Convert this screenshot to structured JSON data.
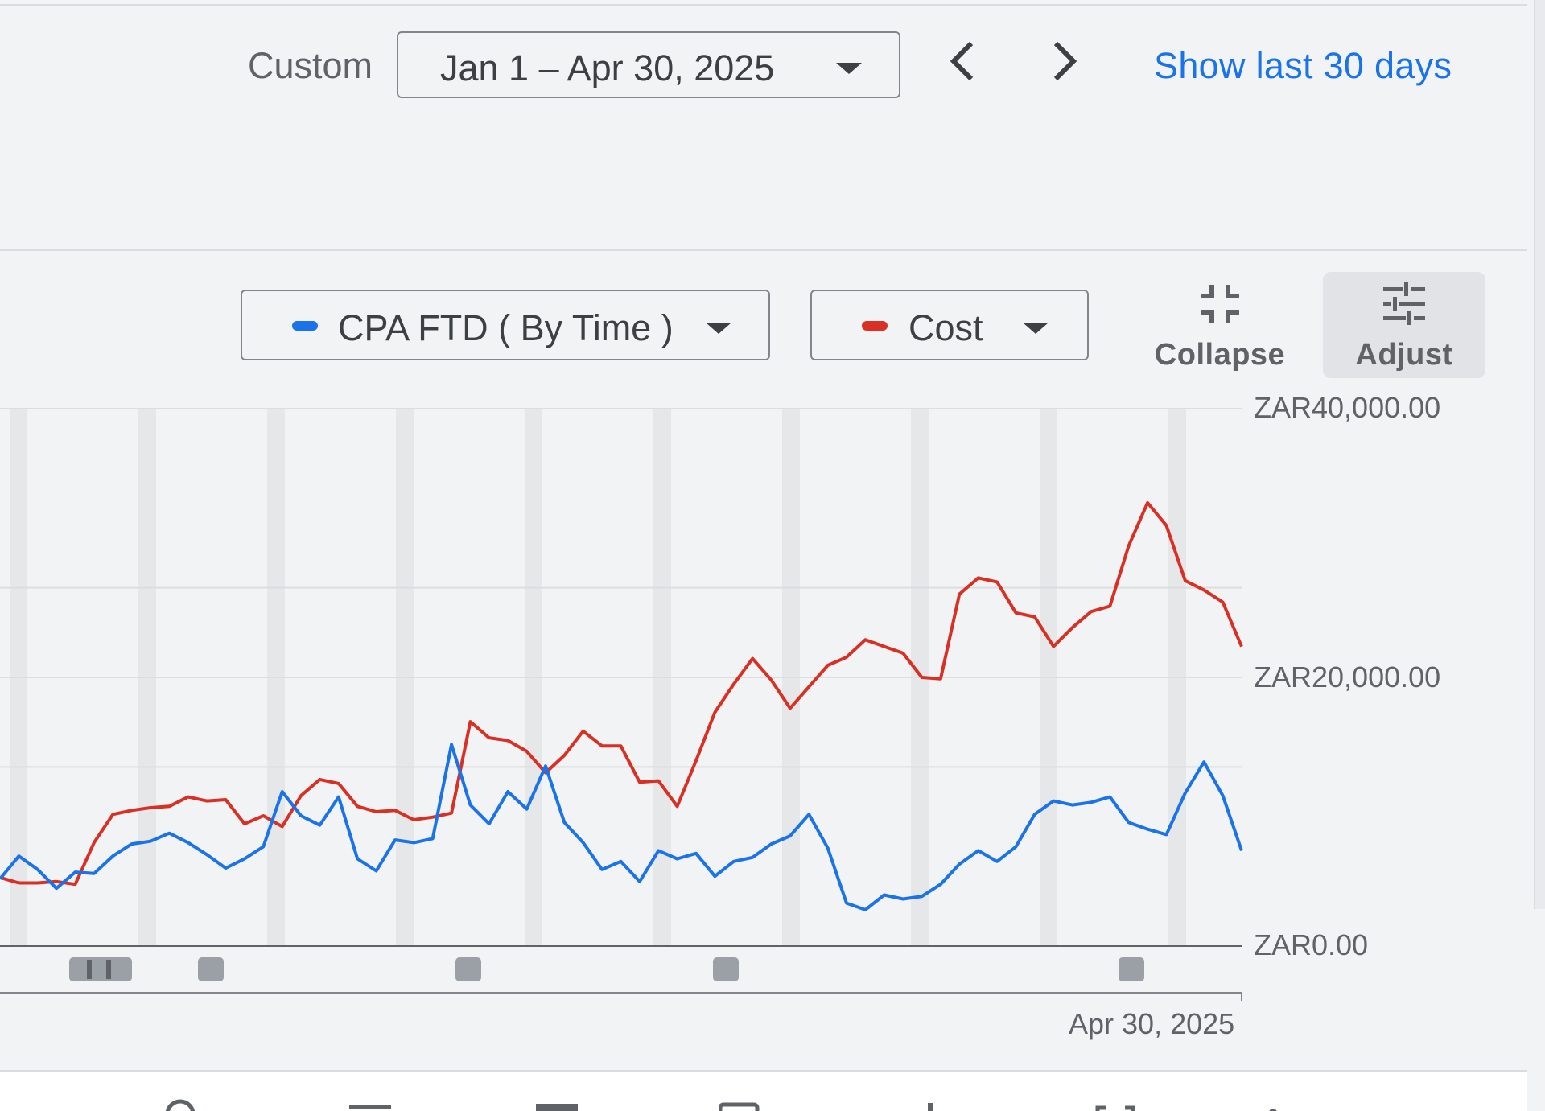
{
  "date_toolbar": {
    "range_type_label": "Custom",
    "date_range_value": "Jan 1 – Apr 30, 2025",
    "show_last_label": "Show last 30 days"
  },
  "metrics": [
    {
      "label": "CPA FTD ( By Time )",
      "color": "#1a73e8"
    },
    {
      "label": "Cost",
      "color": "#d93025"
    }
  ],
  "tools": {
    "collapse_label": "Collapse",
    "adjust_label": "Adjust"
  },
  "chart_data": {
    "type": "line",
    "x_end_label": "Apr 30, 2025",
    "y_ticks": [
      "ZAR40,000.00",
      "ZAR20,000.00",
      "ZAR0.00"
    ],
    "ylim": [
      0,
      40000
    ],
    "grid": true,
    "legend": "top",
    "series": [
      {
        "name": "CPA FTD ( By Time )",
        "color": "#1a73e8",
        "values": [
          5000,
          6700,
          5700,
          4300,
          5500,
          5400,
          6700,
          7600,
          7800,
          8400,
          7700,
          6800,
          5800,
          6500,
          7400,
          11500,
          9700,
          9000,
          11100,
          6500,
          5600,
          7900,
          7700,
          8000,
          15000,
          10500,
          9100,
          11500,
          10200,
          13400,
          9200,
          7700,
          5700,
          6300,
          4800,
          7100,
          6500,
          6900,
          5200,
          6300,
          6600,
          7600,
          8200,
          9800,
          7300,
          3200,
          2700,
          3800,
          3500,
          3700,
          4600,
          6100,
          7100,
          6300,
          7400,
          9800,
          10800,
          10500,
          10700,
          11100,
          9200,
          8700,
          8300,
          11400,
          13700,
          11200,
          7100
        ]
      },
      {
        "name": "Cost",
        "color": "#d93025",
        "values": [
          5100,
          4700,
          4700,
          4800,
          4600,
          7700,
          9800,
          10100,
          10300,
          10400,
          11100,
          10800,
          10900,
          9100,
          9700,
          8900,
          11200,
          12400,
          12100,
          10400,
          10000,
          10100,
          9400,
          9600,
          9900,
          16700,
          15500,
          15300,
          14500,
          12900,
          14200,
          16000,
          14900,
          14900,
          12200,
          12300,
          10400,
          13800,
          17400,
          19500,
          21400,
          19800,
          17700,
          19300,
          20900,
          21500,
          22800,
          22300,
          21800,
          20000,
          19900,
          26200,
          27400,
          27100,
          24800,
          24500,
          22300,
          23700,
          24900,
          25300,
          29800,
          33000,
          31300,
          27200,
          26500,
          25600,
          22300
        ]
      }
    ]
  }
}
